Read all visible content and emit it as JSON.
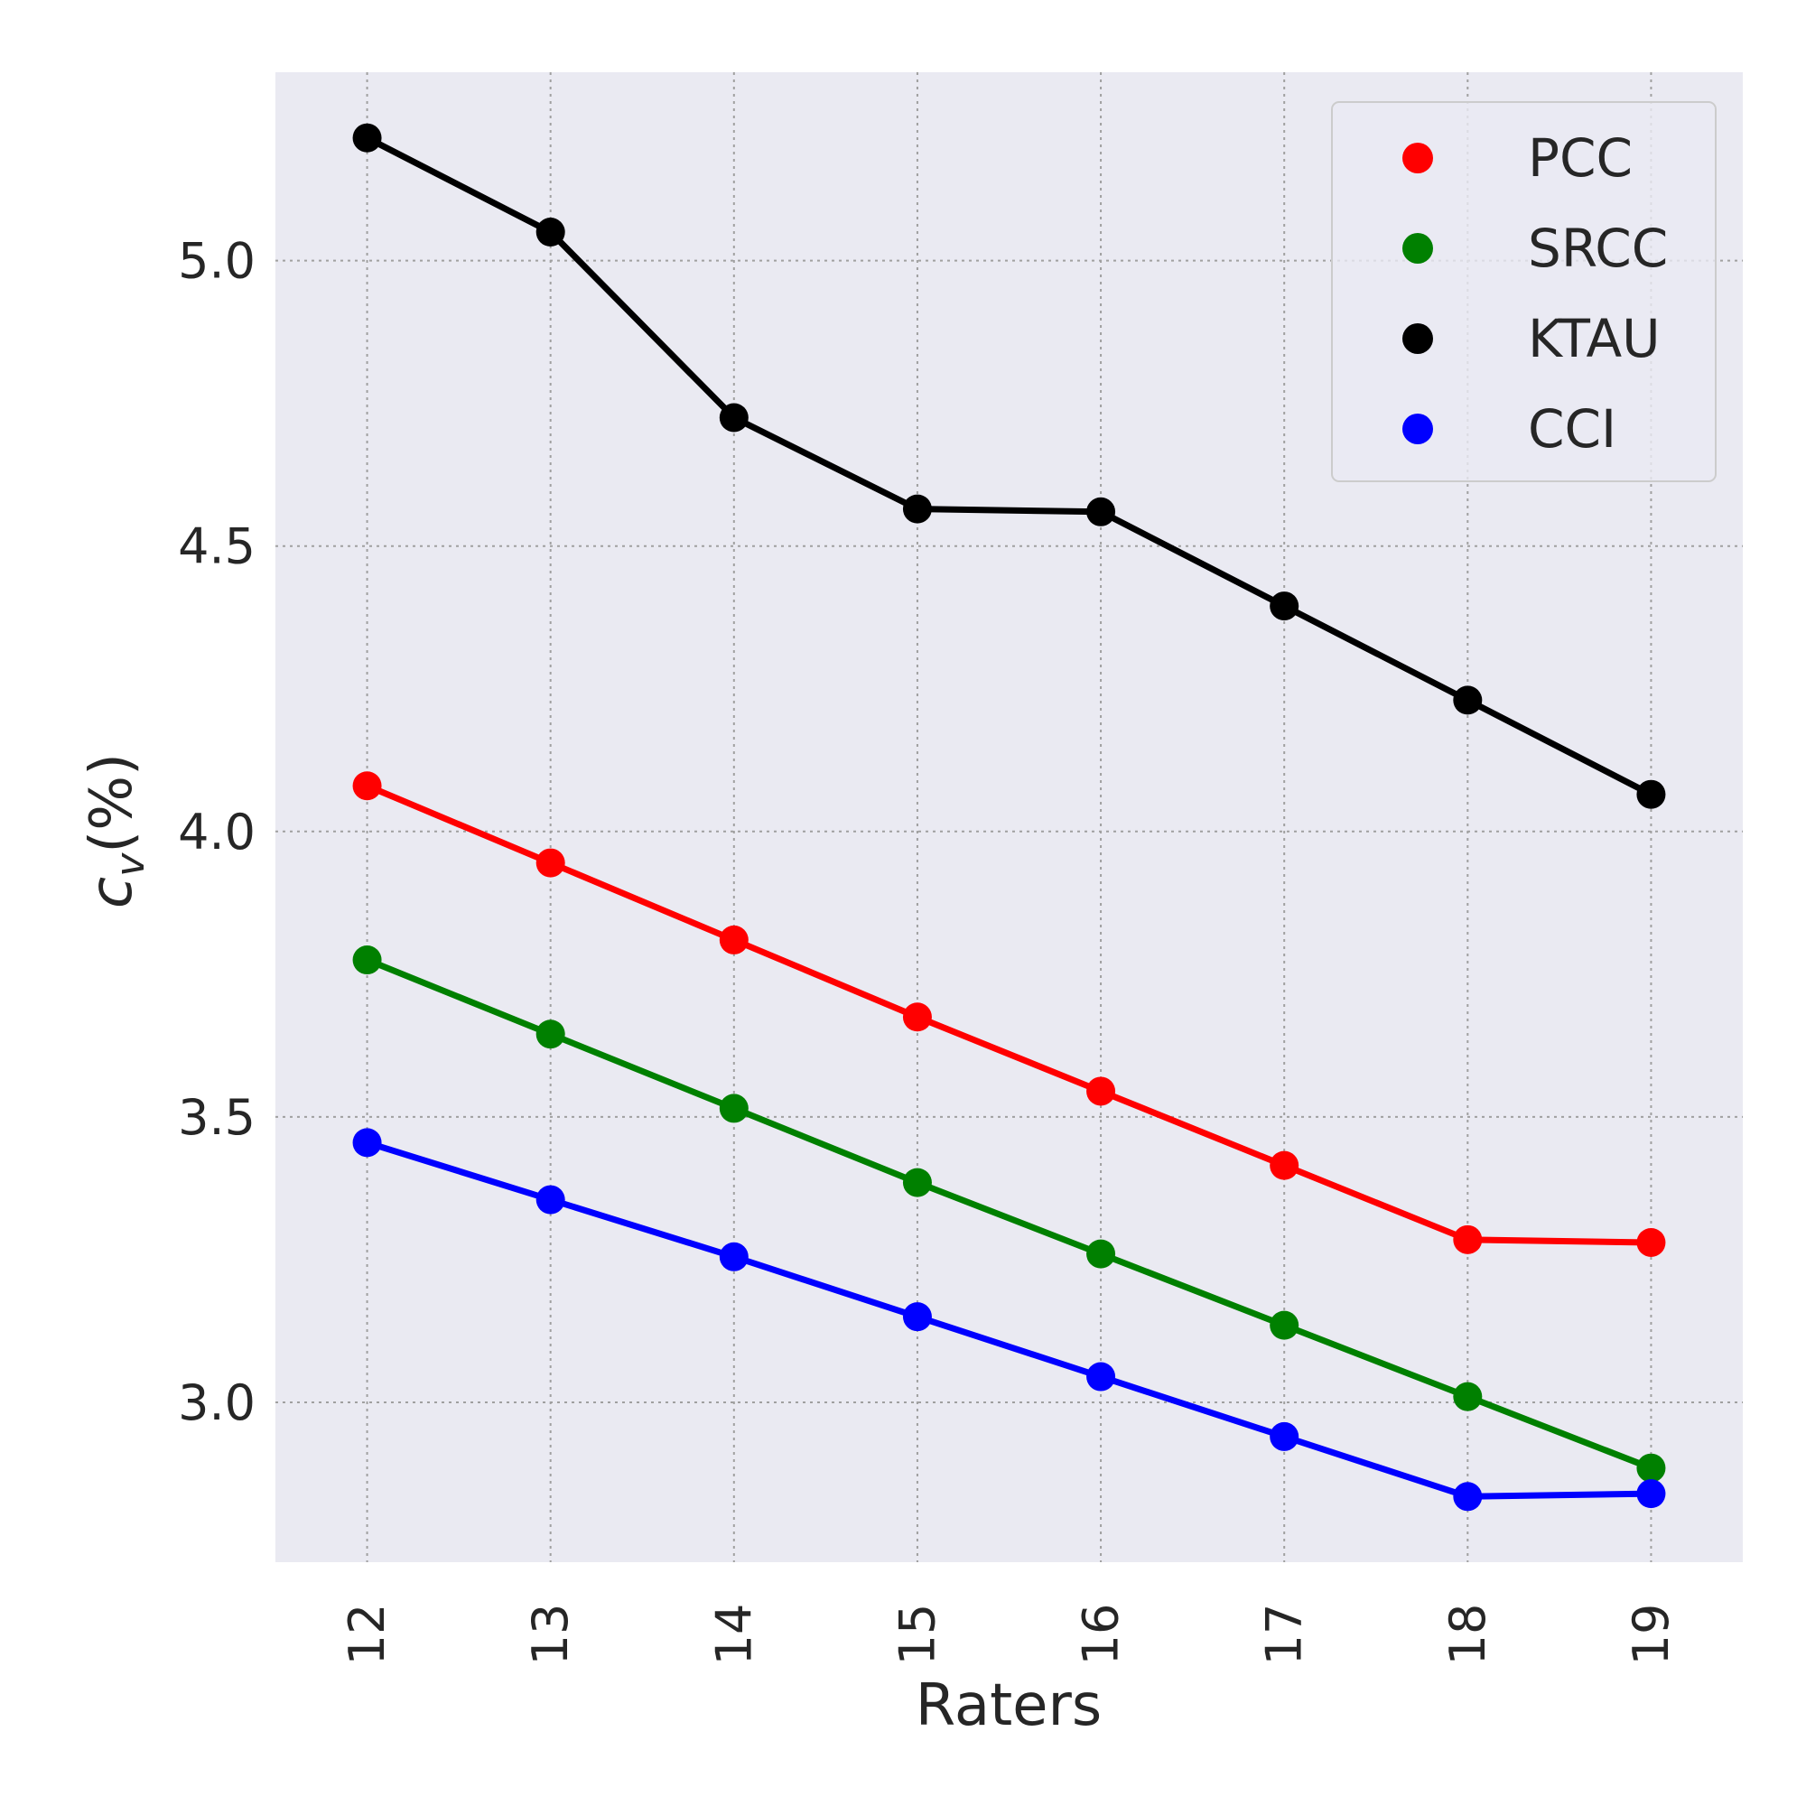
{
  "chart_data": {
    "type": "line",
    "title": "",
    "xlabel": "Raters",
    "ylabel": "c_v(%)",
    "ylabel_main": "c",
    "ylabel_sub": "v",
    "ylabel_suffix": "(%)",
    "x": [
      12,
      13,
      14,
      15,
      16,
      17,
      18,
      19
    ],
    "x_tick_labels": [
      "12",
      "13",
      "14",
      "15",
      "16",
      "17",
      "18",
      "19"
    ],
    "y_ticks": [
      3.0,
      3.5,
      4.0,
      4.5,
      5.0
    ],
    "y_tick_labels": [
      "3.0",
      "3.5",
      "4.0",
      "4.5",
      "5.0"
    ],
    "xlim": [
      11.5,
      19.5
    ],
    "ylim": [
      2.72,
      5.33
    ],
    "grid": true,
    "legend_position": "top-right",
    "series": [
      {
        "name": "PCC",
        "color": "#ff0000",
        "values": [
          4.08,
          3.945,
          3.81,
          3.675,
          3.545,
          3.415,
          3.285,
          3.28
        ]
      },
      {
        "name": "SRCC",
        "color": "#008000",
        "values": [
          3.775,
          3.645,
          3.515,
          3.385,
          3.26,
          3.135,
          3.01,
          2.885
        ]
      },
      {
        "name": "KTAU",
        "color": "#000000",
        "values": [
          5.215,
          5.05,
          4.725,
          4.565,
          4.56,
          4.395,
          4.23,
          4.065
        ]
      },
      {
        "name": "CCI",
        "color": "#0000ff",
        "values": [
          3.455,
          3.355,
          3.255,
          3.15,
          3.045,
          2.94,
          2.835,
          2.84
        ]
      }
    ],
    "plot_background": "#eaeaf2"
  }
}
